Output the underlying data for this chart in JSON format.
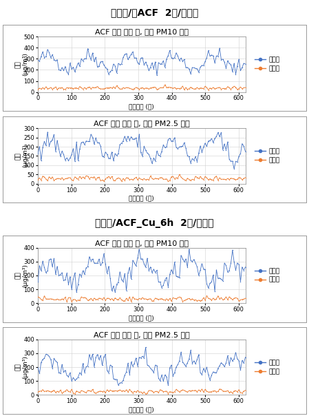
{
  "section1_title": "지지체/원ACF  2장/지지체",
  "section2_title": "지지체/ACF_Cu_6h  2장/지지체",
  "chart1_title": "ACF 필터 여과 전, 후의 PM10 농도",
  "chart2_title": "ACF 필터 여과 전, 후의 PM2.5 농도",
  "chart3_title": "ACF 필터 여과 전, 후의 PM10 농도",
  "chart4_title": "ACF 필터 여과 전, 후의 PM2.5 농도",
  "ylabel_line1": "농도",
  "ylabel_line2": "(μg/m³)",
  "xlabel": "여과시간 (초)",
  "legend_before": "여과전",
  "legend_after": "여과후",
  "color_before": "#4472C4",
  "color_after": "#ED7D31",
  "xlim": [
    0,
    620
  ],
  "xticks": [
    0,
    100,
    200,
    300,
    400,
    500,
    600
  ],
  "pm10_s1_ylim": [
    0,
    500
  ],
  "pm10_s1_yticks": [
    0,
    100,
    200,
    300,
    400,
    500
  ],
  "pm25_s1_ylim": [
    0,
    300
  ],
  "pm25_s1_yticks": [
    0,
    50,
    100,
    150,
    200,
    250,
    300
  ],
  "pm10_s2_ylim": [
    0,
    400
  ],
  "pm10_s2_yticks": [
    0,
    100,
    200,
    300,
    400
  ],
  "pm25_s2_ylim": [
    0,
    400
  ],
  "pm25_s2_yticks": [
    0,
    100,
    200,
    300,
    400
  ],
  "header_bg": "#B0B0B0",
  "section_sep_color": "#555555",
  "chart_bg": "#FFFFFF",
  "header_fontsize": 10,
  "chart_title_fontsize": 8,
  "axis_label_fontsize": 6.5,
  "tick_fontsize": 6,
  "legend_fontsize": 6.5
}
